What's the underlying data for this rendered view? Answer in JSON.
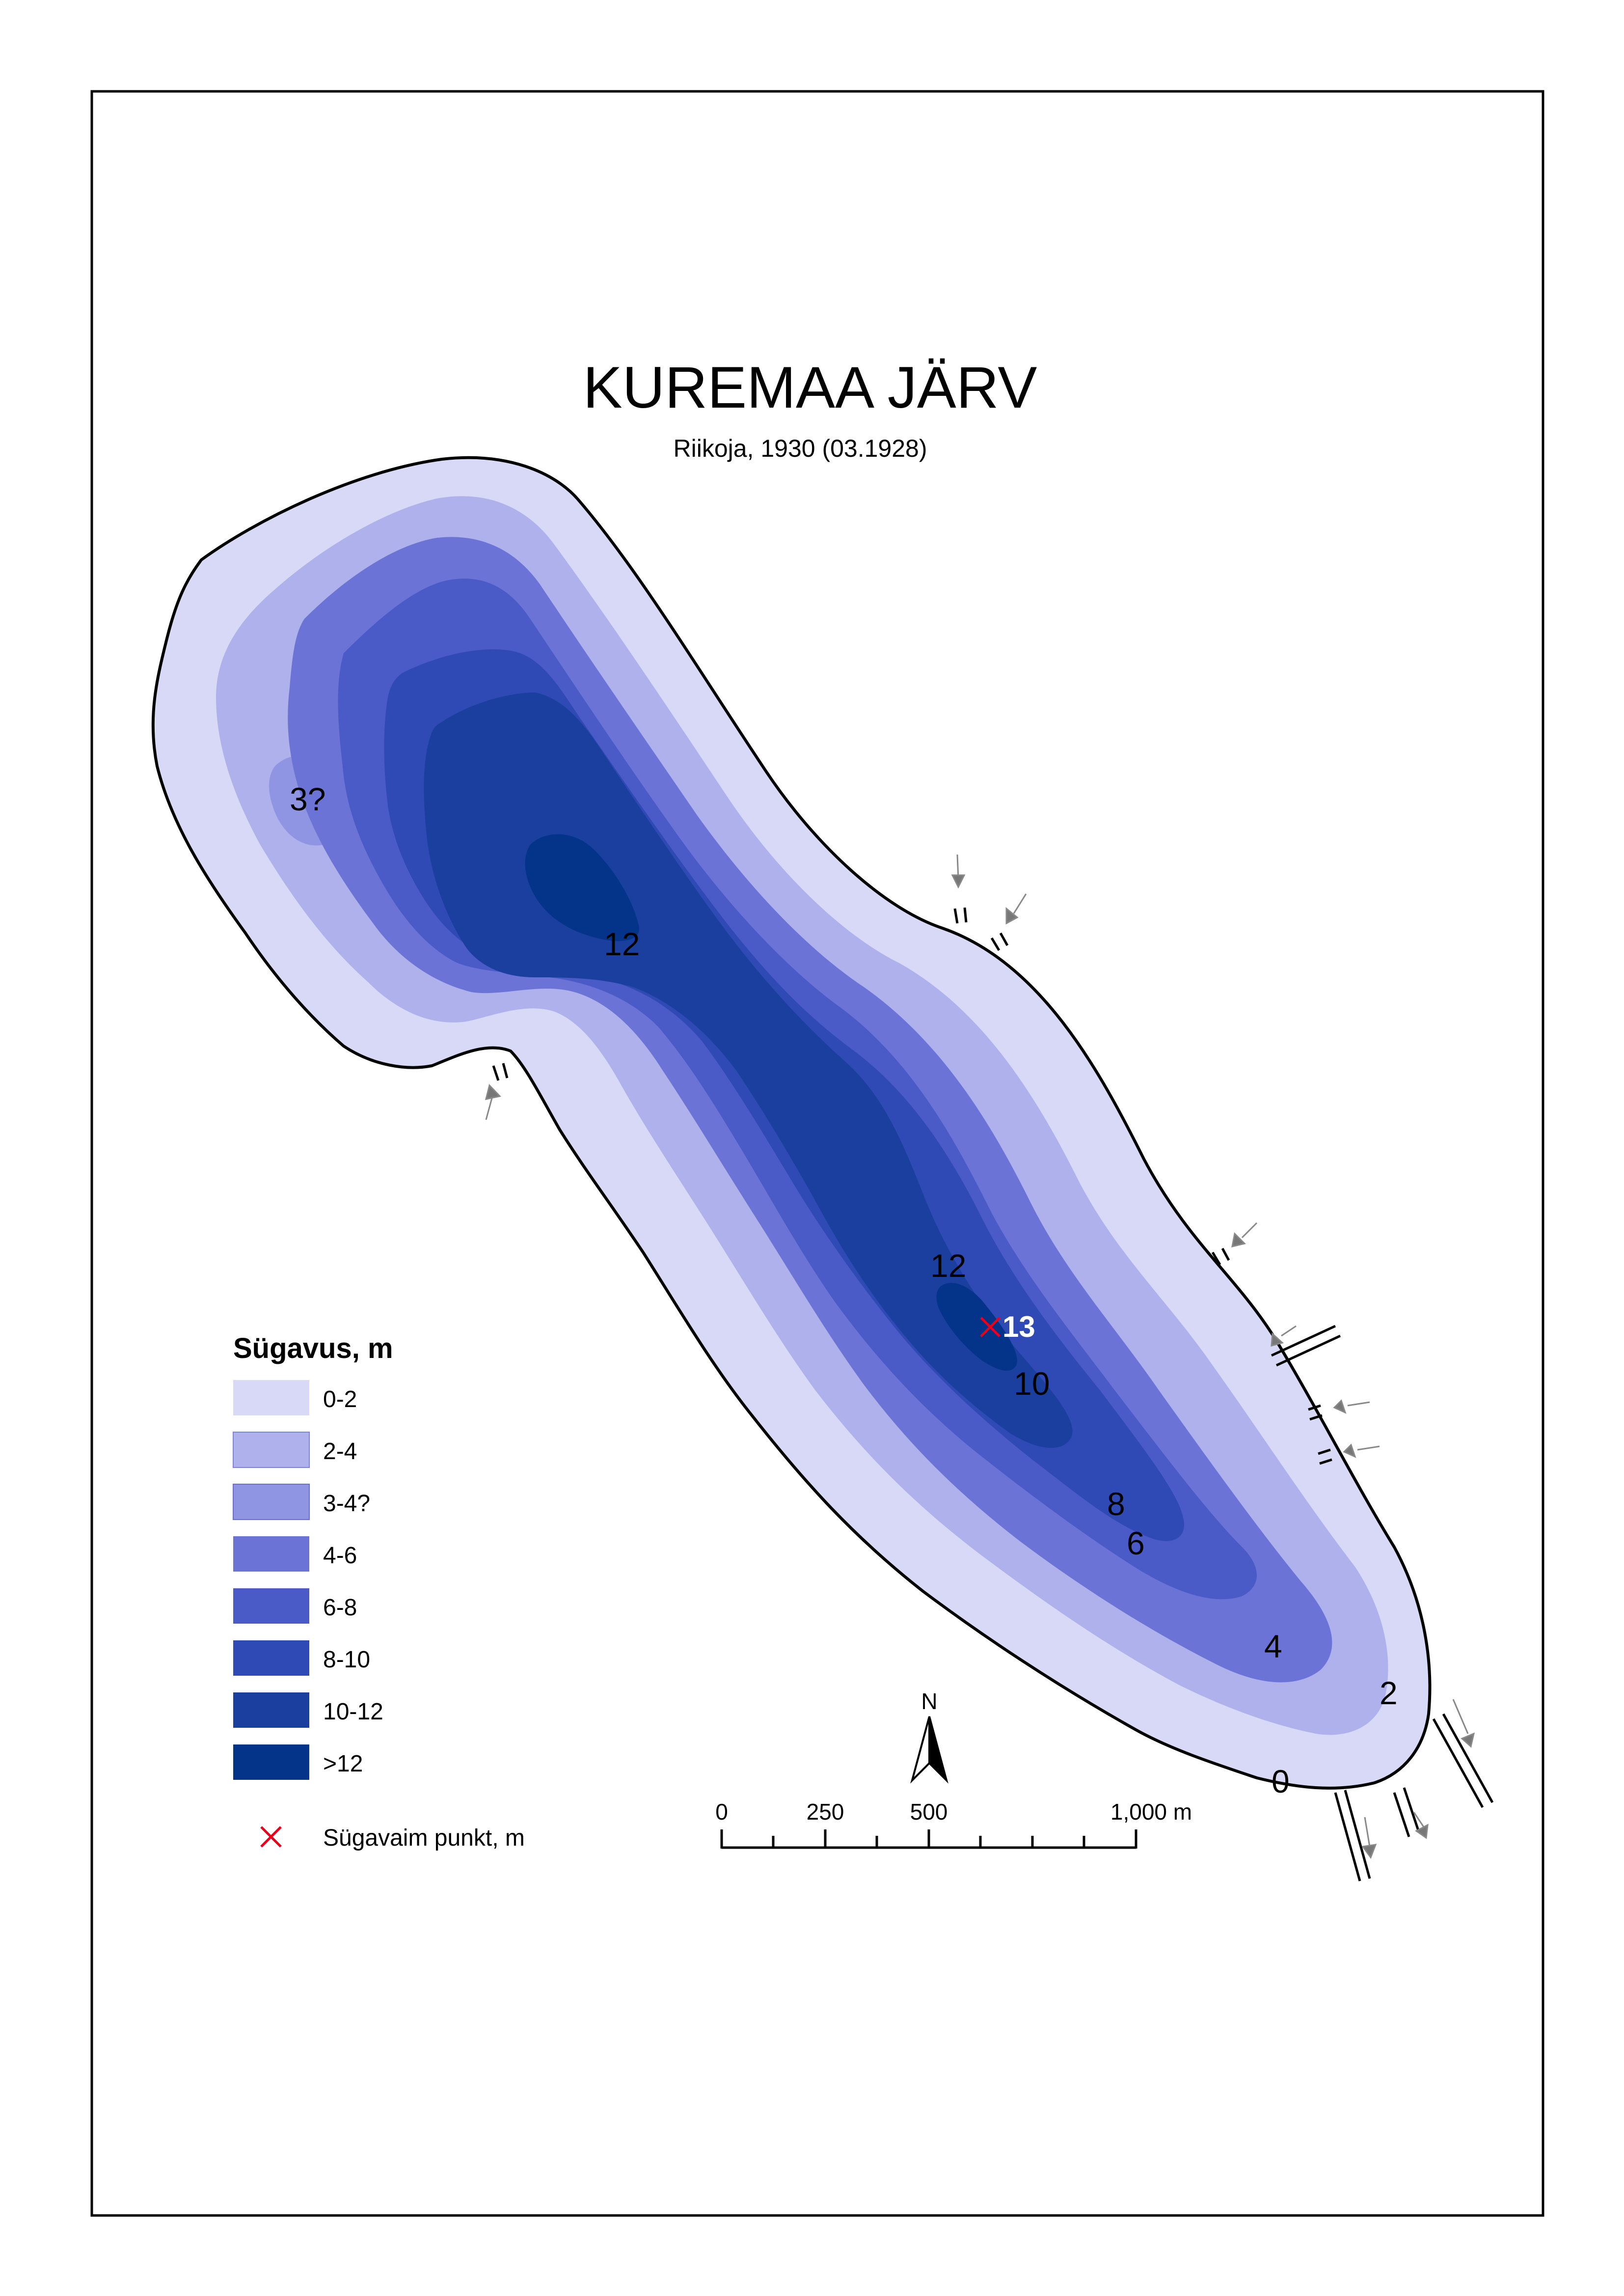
{
  "map": {
    "title": "KUREMAA JÄRV",
    "subtitle": "Riikoja, 1930 (03.1928)"
  },
  "depth_labels": [
    "3?",
    "12",
    "12",
    "10",
    "8",
    "6",
    "4",
    "2",
    "0"
  ],
  "deepest_point": {
    "value": "13"
  },
  "legend": {
    "title": "Sügavus, m",
    "classes": [
      {
        "label": "0-2",
        "color": "#d8d9f7"
      },
      {
        "label": "2-4",
        "color": "#aeb1ec"
      },
      {
        "label": "3-4?",
        "color": "#9095e3"
      },
      {
        "label": "4-6",
        "color": "#6b74d6"
      },
      {
        "label": "6-8",
        "color": "#4a5ac7"
      },
      {
        "label": "8-10",
        "color": "#2f49b5"
      },
      {
        "label": "10-12",
        "color": "#1a3f9f"
      },
      {
        "label": ">12",
        "color": "#033489"
      }
    ],
    "deepest_label": "Sügavaim punkt, m",
    "deepest_color": "#e8001c"
  },
  "north_arrow": {
    "label": "N"
  },
  "scale_bar": {
    "labels": [
      "0",
      "250",
      "500",
      "1,000 m"
    ]
  }
}
